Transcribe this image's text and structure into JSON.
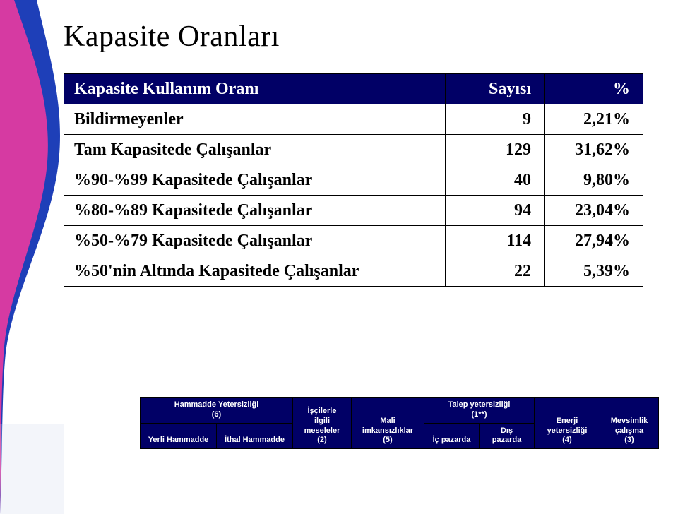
{
  "title": "Kapasite Oranları",
  "table": {
    "header": {
      "label": "Kapasite Kullanım Oranı",
      "count": "Sayısı",
      "pct": "%"
    },
    "rows": [
      {
        "label": "Bildirmeyenler",
        "count": "9",
        "pct": "2,21%"
      },
      {
        "label": "Tam Kapasitede Çalışanlar",
        "count": "129",
        "pct": "31,62%"
      },
      {
        "label": "%90-%99 Kapasitede Çalışanlar",
        "count": "40",
        "pct": "9,80%"
      },
      {
        "label": "%80-%89 Kapasitede Çalışanlar",
        "count": "94",
        "pct": "23,04%"
      },
      {
        "label": "%50-%79 Kapasitede Çalışanlar",
        "count": "114",
        "pct": "27,94%"
      },
      {
        "label": "%50'nin Altında Kapasitede Çalışanlar",
        "count": "22",
        "pct": "5,39%"
      }
    ]
  },
  "factors": {
    "hammadde_group": "Hammadde Yetersizliği\n(6)",
    "yerli_hammadde": "Yerli Hammadde",
    "ithal_hammadde": "İthal Hammadde",
    "iscilerle": "İşçilerle\nilgili\nmeseleler\n(2)",
    "mali": "Mali\nimkansızlıklar\n(5)",
    "talep_group": "Talep yetersizliği\n(1**)",
    "ic_pazarda": "İç pazarda",
    "dis_pazarda": "Dış\npazarda",
    "enerji": "Enerji\nyetersizliği\n(4)",
    "mevsimlik": "Mevsimlik\nçalışma\n(3)"
  },
  "colors": {
    "header_bg": "#010066",
    "header_fg": "#ffffff",
    "cell_bg": "#ffffff",
    "cell_fg": "#000000",
    "grid": "#000000",
    "deco_blue": "#1e3fb8",
    "deco_pink": "#e63aa0"
  }
}
